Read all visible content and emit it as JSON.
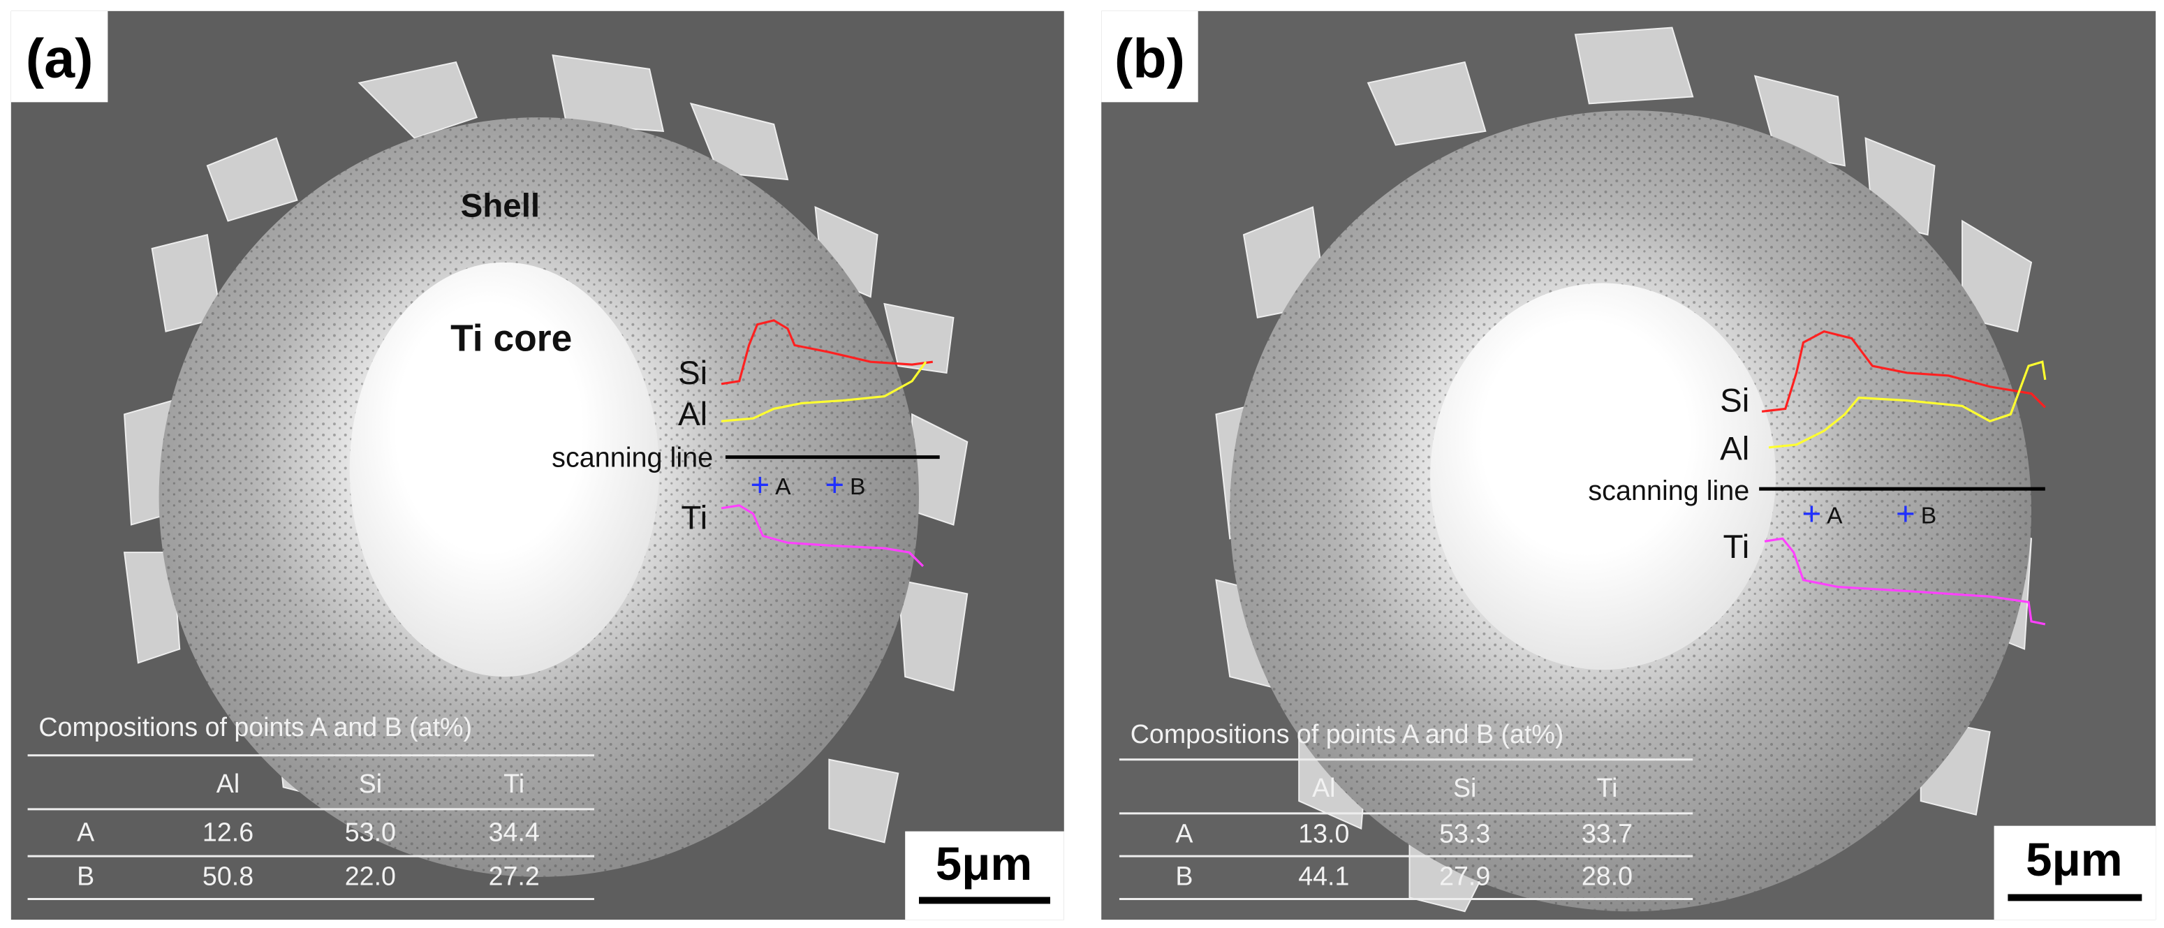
{
  "panels": [
    {
      "label": "(a)",
      "shell": "Shell",
      "core": "Ti core",
      "scan": {
        "si": "Si",
        "al": "Al",
        "line": "scanning line",
        "ti": "Ti"
      },
      "points": [
        "A",
        "B"
      ],
      "table": {
        "title": "Compositions of points A and B (at%)",
        "header": [
          "Al",
          "Si",
          "Ti"
        ],
        "rows": [
          [
            "A",
            "12.6",
            "53.0",
            "34.4"
          ],
          [
            "B",
            "50.8",
            "22.0",
            "27.2"
          ]
        ]
      },
      "scale_bar": "5μm"
    },
    {
      "label": "(b)",
      "scan": {
        "si": "Si",
        "al": "Al",
        "line": "scanning line",
        "ti": "Ti"
      },
      "points": [
        "A",
        "B"
      ],
      "table": {
        "title": "Compositions of points A and B (at%)",
        "header": [
          "Al",
          "Si",
          "Ti"
        ],
        "rows": [
          [
            "A",
            "13.0",
            "53.3",
            "33.7"
          ],
          [
            "B",
            "44.1",
            "27.9",
            "28.0"
          ]
        ]
      },
      "scale_bar": "5μm"
    }
  ]
}
